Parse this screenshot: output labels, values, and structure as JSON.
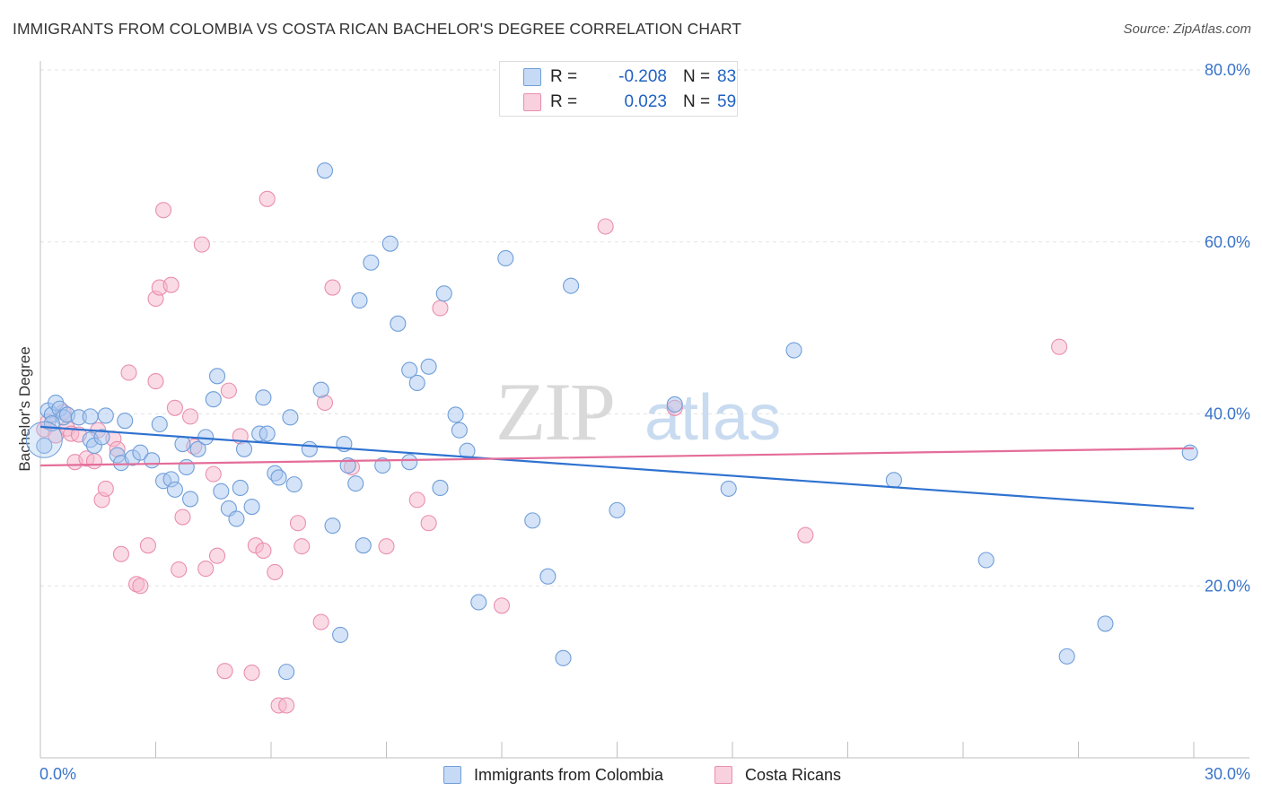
{
  "header": {
    "title": "IMMIGRANTS FROM COLOMBIA VS COSTA RICAN BACHELOR'S DEGREE CORRELATION CHART",
    "source": "Source: ZipAtlas.com"
  },
  "watermark": {
    "zip": "ZIP",
    "atlas": "atlas"
  },
  "legend_top": {
    "rows": [
      {
        "r_label": "R =",
        "r_value": "-0.208",
        "n_label": "N =",
        "n_value": "83",
        "color": "#aac8f0"
      },
      {
        "r_label": "R =",
        "r_value": "0.023",
        "n_label": "N =",
        "n_value": "59",
        "color": "#f5b8cb"
      }
    ]
  },
  "legend_bottom": {
    "items": [
      {
        "label": "Immigrants from Colombia",
        "color": "#aac8f0"
      },
      {
        "label": "Costa Ricans",
        "color": "#f5b8cb"
      }
    ]
  },
  "colors": {
    "blue_fill": "#aac8f0",
    "blue_stroke": "#6f9ed9",
    "blue_line": "#2f72d0",
    "pink_fill": "#f5b8cb",
    "pink_stroke": "#ea8fae",
    "pink_line": "#e46d99",
    "tick_text": "#3a74c9",
    "grid": "#e3e3e3"
  },
  "chart_data": {
    "type": "scatter",
    "title": "IMMIGRANTS FROM COLOMBIA VS COSTA RICAN BACHELOR'S DEGREE CORRELATION CHART",
    "xlabel": "",
    "ylabel": "Bachelor's Degree",
    "xlim": [
      0,
      30
    ],
    "ylim": [
      0,
      80
    ],
    "x_tick_labels": [
      "0.0%",
      "30.0%"
    ],
    "x_tick_values": [
      0,
      30
    ],
    "y_tick_labels": [
      "20.0%",
      "40.0%",
      "60.0%",
      "80.0%"
    ],
    "y_tick_values": [
      20,
      40,
      60,
      80
    ],
    "grid": true,
    "legend_placement": "top-center",
    "series": [
      {
        "name": "Immigrants from Colombia",
        "r": -0.208,
        "n": 83,
        "trend": {
          "x": [
            0,
            30
          ],
          "y": [
            38.5,
            29.0
          ]
        },
        "points": [
          [
            0.1,
            36.3
          ],
          [
            0.2,
            40.4
          ],
          [
            0.3,
            39.9
          ],
          [
            0.4,
            41.3
          ],
          [
            0.5,
            40.6
          ],
          [
            0.6,
            39.6
          ],
          [
            0.7,
            39.9
          ],
          [
            1.0,
            39.6
          ],
          [
            1.3,
            39.7
          ],
          [
            1.3,
            37.0
          ],
          [
            1.4,
            36.3
          ],
          [
            1.7,
            39.8
          ],
          [
            1.6,
            37.3
          ],
          [
            2.0,
            35.2
          ],
          [
            2.1,
            34.3
          ],
          [
            2.2,
            39.2
          ],
          [
            2.4,
            34.9
          ],
          [
            2.6,
            35.5
          ],
          [
            2.9,
            34.6
          ],
          [
            3.1,
            38.8
          ],
          [
            3.2,
            32.2
          ],
          [
            3.4,
            32.4
          ],
          [
            3.5,
            31.2
          ],
          [
            3.7,
            36.5
          ],
          [
            3.8,
            33.8
          ],
          [
            3.9,
            30.1
          ],
          [
            4.1,
            35.9
          ],
          [
            4.3,
            37.3
          ],
          [
            4.5,
            41.7
          ],
          [
            4.6,
            44.4
          ],
          [
            4.7,
            31.0
          ],
          [
            4.9,
            29.0
          ],
          [
            5.1,
            27.8
          ],
          [
            5.2,
            31.4
          ],
          [
            5.3,
            35.9
          ],
          [
            5.5,
            29.2
          ],
          [
            5.7,
            37.7
          ],
          [
            5.8,
            41.9
          ],
          [
            5.9,
            37.7
          ],
          [
            6.1,
            33.1
          ],
          [
            6.2,
            32.6
          ],
          [
            6.4,
            10.0
          ],
          [
            6.5,
            39.6
          ],
          [
            6.6,
            31.8
          ],
          [
            7.0,
            35.9
          ],
          [
            7.3,
            42.8
          ],
          [
            7.4,
            68.3
          ],
          [
            7.6,
            27.0
          ],
          [
            7.8,
            14.3
          ],
          [
            7.9,
            36.5
          ],
          [
            8.0,
            34.0
          ],
          [
            8.2,
            31.9
          ],
          [
            8.3,
            53.2
          ],
          [
            8.4,
            24.7
          ],
          [
            8.6,
            57.6
          ],
          [
            8.9,
            34.0
          ],
          [
            9.1,
            59.8
          ],
          [
            9.3,
            50.5
          ],
          [
            9.6,
            34.4
          ],
          [
            9.6,
            45.1
          ],
          [
            9.8,
            43.6
          ],
          [
            10.1,
            45.5
          ],
          [
            10.4,
            31.4
          ],
          [
            10.5,
            54.0
          ],
          [
            10.8,
            39.9
          ],
          [
            10.9,
            38.1
          ],
          [
            11.1,
            35.7
          ],
          [
            11.4,
            18.1
          ],
          [
            12.1,
            58.1
          ],
          [
            12.8,
            27.6
          ],
          [
            13.2,
            21.1
          ],
          [
            13.6,
            11.6
          ],
          [
            13.8,
            54.9
          ],
          [
            15.0,
            28.8
          ],
          [
            16.5,
            41.1
          ],
          [
            17.9,
            31.3
          ],
          [
            19.6,
            47.4
          ],
          [
            22.2,
            32.3
          ],
          [
            24.6,
            23.0
          ],
          [
            26.7,
            11.8
          ],
          [
            27.7,
            15.6
          ],
          [
            29.9,
            35.5
          ],
          [
            0.3,
            38.9
          ]
        ]
      },
      {
        "name": "Costa Ricans",
        "r": 0.023,
        "n": 59,
        "trend": {
          "x": [
            0,
            30
          ],
          "y": [
            34.0,
            36.0
          ]
        },
        "points": [
          [
            0.1,
            38.2
          ],
          [
            0.2,
            39.1
          ],
          [
            0.4,
            37.5
          ],
          [
            0.6,
            40.2
          ],
          [
            0.7,
            38.3
          ],
          [
            0.8,
            37.7
          ],
          [
            0.9,
            34.4
          ],
          [
            1.0,
            37.6
          ],
          [
            1.2,
            34.8
          ],
          [
            1.4,
            34.5
          ],
          [
            1.5,
            38.1
          ],
          [
            1.6,
            30.0
          ],
          [
            1.7,
            31.3
          ],
          [
            1.9,
            37.1
          ],
          [
            2.0,
            35.9
          ],
          [
            2.1,
            23.7
          ],
          [
            2.3,
            44.8
          ],
          [
            2.5,
            20.2
          ],
          [
            2.6,
            20.0
          ],
          [
            2.8,
            24.7
          ],
          [
            3.0,
            43.8
          ],
          [
            3.0,
            53.4
          ],
          [
            3.1,
            54.7
          ],
          [
            3.2,
            63.7
          ],
          [
            3.4,
            55.0
          ],
          [
            3.5,
            40.7
          ],
          [
            3.6,
            21.9
          ],
          [
            3.7,
            28.0
          ],
          [
            3.9,
            39.7
          ],
          [
            4.0,
            36.2
          ],
          [
            4.2,
            59.7
          ],
          [
            4.3,
            22.0
          ],
          [
            4.5,
            33.0
          ],
          [
            4.6,
            23.5
          ],
          [
            4.8,
            10.1
          ],
          [
            4.9,
            42.7
          ],
          [
            5.2,
            37.4
          ],
          [
            5.5,
            9.9
          ],
          [
            5.6,
            24.7
          ],
          [
            5.8,
            24.1
          ],
          [
            5.9,
            65.0
          ],
          [
            6.1,
            21.6
          ],
          [
            6.2,
            6.1
          ],
          [
            6.4,
            6.1
          ],
          [
            6.7,
            27.3
          ],
          [
            6.8,
            24.6
          ],
          [
            7.3,
            15.8
          ],
          [
            7.4,
            41.3
          ],
          [
            7.6,
            54.7
          ],
          [
            8.1,
            33.8
          ],
          [
            9.0,
            24.6
          ],
          [
            9.8,
            30.0
          ],
          [
            10.1,
            27.3
          ],
          [
            10.4,
            52.3
          ],
          [
            12.0,
            17.7
          ],
          [
            14.7,
            61.8
          ],
          [
            16.5,
            40.7
          ],
          [
            19.9,
            25.9
          ],
          [
            26.5,
            47.8
          ]
        ]
      }
    ]
  }
}
